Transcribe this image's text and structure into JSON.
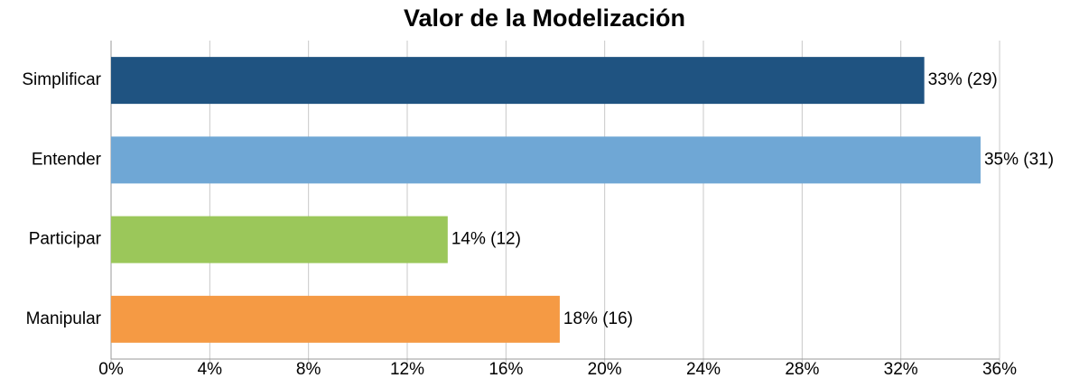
{
  "chart_data": {
    "type": "hbar",
    "title": "Valor de la Modelización",
    "categories": [
      "Simplificar",
      "Entender",
      "Participar",
      "Manipular"
    ],
    "values": [
      32.95,
      35.23,
      13.64,
      18.18
    ],
    "value_labels": [
      "33% (29)",
      "35% (31)",
      "14% (12)",
      "18% (16)"
    ],
    "colors": [
      "#1f5381",
      "#6fa7d5",
      "#9bc75a",
      "#f59a44"
    ],
    "xlim": [
      0,
      36
    ],
    "xticks": [
      {
        "value": 0,
        "label": "0%"
      },
      {
        "value": 4,
        "label": "4%"
      },
      {
        "value": 8,
        "label": "8%"
      },
      {
        "value": 12,
        "label": "12%"
      },
      {
        "value": 16,
        "label": "16%"
      },
      {
        "value": 20,
        "label": "20%"
      },
      {
        "value": 24,
        "label": "24%"
      },
      {
        "value": 28,
        "label": "28%"
      },
      {
        "value": 32,
        "label": "32%"
      },
      {
        "value": 36,
        "label": "36%"
      }
    ],
    "grid": true
  }
}
